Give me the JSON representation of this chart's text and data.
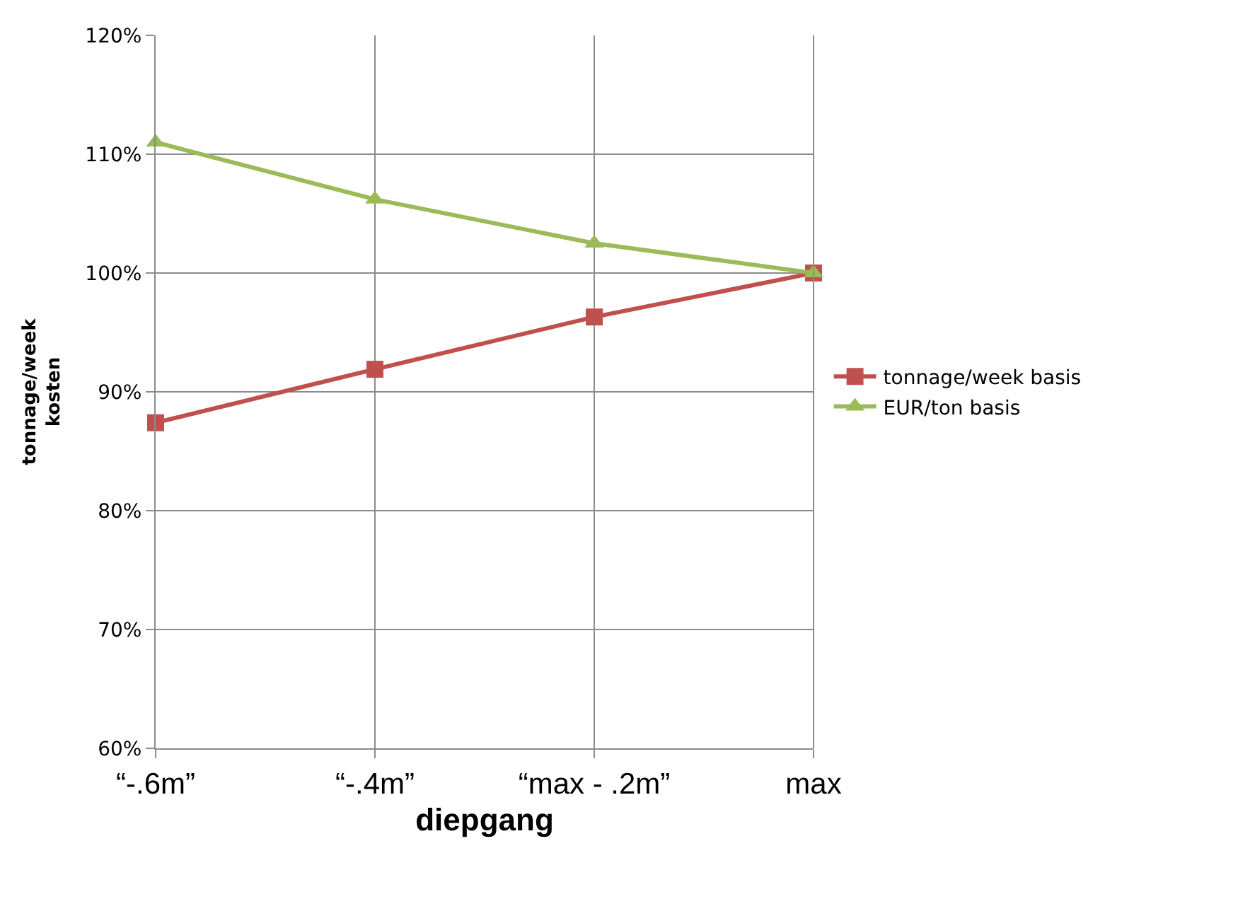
{
  "chart_data": {
    "type": "line",
    "xlabel": "diepgang",
    "ylabel": "tonnage/week\nkosten",
    "categories": [
      "“-.6m”",
      "“-.4m”",
      "“max - .2m”",
      "max"
    ],
    "series": [
      {
        "name": "tonnage/week basis",
        "color": "#c0504d",
        "marker": "square",
        "values": [
          87.4,
          91.9,
          96.3,
          100
        ]
      },
      {
        "name": "EUR/ton basis",
        "color": "#9bbb59",
        "marker": "triangle",
        "values": [
          111.0,
          106.2,
          102.5,
          100
        ]
      }
    ],
    "ylim": [
      60,
      120
    ],
    "yticks": [
      {
        "value": 60,
        "label": "60%"
      },
      {
        "value": 70,
        "label": "70%"
      },
      {
        "value": 80,
        "label": "80%"
      },
      {
        "value": 90,
        "label": "90%"
      },
      {
        "value": 100,
        "label": "100%"
      },
      {
        "value": 110,
        "label": "110%"
      },
      {
        "value": 120,
        "label": "120%"
      }
    ],
    "grid": true,
    "legend": "right",
    "line_style": "solid"
  }
}
